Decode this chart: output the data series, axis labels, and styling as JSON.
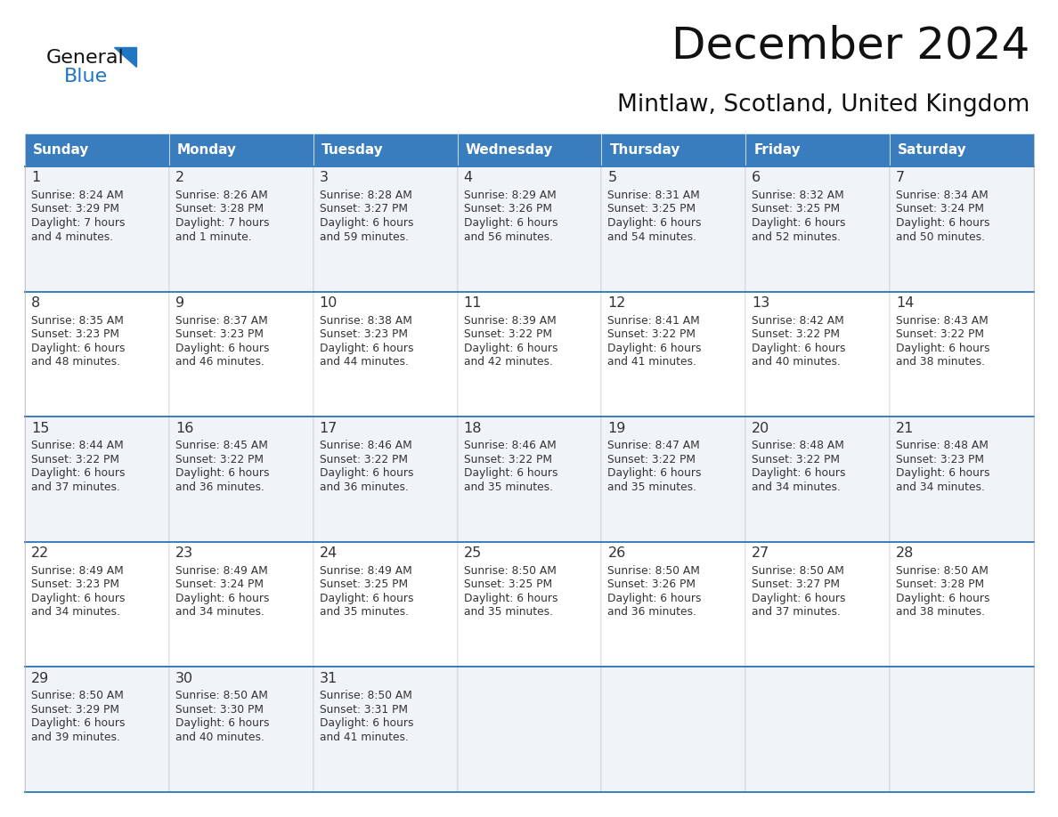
{
  "title": "December 2024",
  "subtitle": "Mintlaw, Scotland, United Kingdom",
  "header_color": "#3a7dbf",
  "header_text_color": "#ffffff",
  "cell_bg_odd": "#f0f4f8",
  "cell_bg_even": "#ffffff",
  "text_color": "#333333",
  "border_color": "#3a7dbf",
  "thin_border": "#aaaaaa",
  "days_of_week": [
    "Sunday",
    "Monday",
    "Tuesday",
    "Wednesday",
    "Thursday",
    "Friday",
    "Saturday"
  ],
  "calendar_data": [
    [
      {
        "day": 1,
        "sunrise": "8:24 AM",
        "sunset": "3:29 PM",
        "daylight": "7 hours",
        "daylight2": "and 4 minutes."
      },
      {
        "day": 2,
        "sunrise": "8:26 AM",
        "sunset": "3:28 PM",
        "daylight": "7 hours",
        "daylight2": "and 1 minute."
      },
      {
        "day": 3,
        "sunrise": "8:28 AM",
        "sunset": "3:27 PM",
        "daylight": "6 hours",
        "daylight2": "and 59 minutes."
      },
      {
        "day": 4,
        "sunrise": "8:29 AM",
        "sunset": "3:26 PM",
        "daylight": "6 hours",
        "daylight2": "and 56 minutes."
      },
      {
        "day": 5,
        "sunrise": "8:31 AM",
        "sunset": "3:25 PM",
        "daylight": "6 hours",
        "daylight2": "and 54 minutes."
      },
      {
        "day": 6,
        "sunrise": "8:32 AM",
        "sunset": "3:25 PM",
        "daylight": "6 hours",
        "daylight2": "and 52 minutes."
      },
      {
        "day": 7,
        "sunrise": "8:34 AM",
        "sunset": "3:24 PM",
        "daylight": "6 hours",
        "daylight2": "and 50 minutes."
      }
    ],
    [
      {
        "day": 8,
        "sunrise": "8:35 AM",
        "sunset": "3:23 PM",
        "daylight": "6 hours",
        "daylight2": "and 48 minutes."
      },
      {
        "day": 9,
        "sunrise": "8:37 AM",
        "sunset": "3:23 PM",
        "daylight": "6 hours",
        "daylight2": "and 46 minutes."
      },
      {
        "day": 10,
        "sunrise": "8:38 AM",
        "sunset": "3:23 PM",
        "daylight": "6 hours",
        "daylight2": "and 44 minutes."
      },
      {
        "day": 11,
        "sunrise": "8:39 AM",
        "sunset": "3:22 PM",
        "daylight": "6 hours",
        "daylight2": "and 42 minutes."
      },
      {
        "day": 12,
        "sunrise": "8:41 AM",
        "sunset": "3:22 PM",
        "daylight": "6 hours",
        "daylight2": "and 41 minutes."
      },
      {
        "day": 13,
        "sunrise": "8:42 AM",
        "sunset": "3:22 PM",
        "daylight": "6 hours",
        "daylight2": "and 40 minutes."
      },
      {
        "day": 14,
        "sunrise": "8:43 AM",
        "sunset": "3:22 PM",
        "daylight": "6 hours",
        "daylight2": "and 38 minutes."
      }
    ],
    [
      {
        "day": 15,
        "sunrise": "8:44 AM",
        "sunset": "3:22 PM",
        "daylight": "6 hours",
        "daylight2": "and 37 minutes."
      },
      {
        "day": 16,
        "sunrise": "8:45 AM",
        "sunset": "3:22 PM",
        "daylight": "6 hours",
        "daylight2": "and 36 minutes."
      },
      {
        "day": 17,
        "sunrise": "8:46 AM",
        "sunset": "3:22 PM",
        "daylight": "6 hours",
        "daylight2": "and 36 minutes."
      },
      {
        "day": 18,
        "sunrise": "8:46 AM",
        "sunset": "3:22 PM",
        "daylight": "6 hours",
        "daylight2": "and 35 minutes."
      },
      {
        "day": 19,
        "sunrise": "8:47 AM",
        "sunset": "3:22 PM",
        "daylight": "6 hours",
        "daylight2": "and 35 minutes."
      },
      {
        "day": 20,
        "sunrise": "8:48 AM",
        "sunset": "3:22 PM",
        "daylight": "6 hours",
        "daylight2": "and 34 minutes."
      },
      {
        "day": 21,
        "sunrise": "8:48 AM",
        "sunset": "3:23 PM",
        "daylight": "6 hours",
        "daylight2": "and 34 minutes."
      }
    ],
    [
      {
        "day": 22,
        "sunrise": "8:49 AM",
        "sunset": "3:23 PM",
        "daylight": "6 hours",
        "daylight2": "and 34 minutes."
      },
      {
        "day": 23,
        "sunrise": "8:49 AM",
        "sunset": "3:24 PM",
        "daylight": "6 hours",
        "daylight2": "and 34 minutes."
      },
      {
        "day": 24,
        "sunrise": "8:49 AM",
        "sunset": "3:25 PM",
        "daylight": "6 hours",
        "daylight2": "and 35 minutes."
      },
      {
        "day": 25,
        "sunrise": "8:50 AM",
        "sunset": "3:25 PM",
        "daylight": "6 hours",
        "daylight2": "and 35 minutes."
      },
      {
        "day": 26,
        "sunrise": "8:50 AM",
        "sunset": "3:26 PM",
        "daylight": "6 hours",
        "daylight2": "and 36 minutes."
      },
      {
        "day": 27,
        "sunrise": "8:50 AM",
        "sunset": "3:27 PM",
        "daylight": "6 hours",
        "daylight2": "and 37 minutes."
      },
      {
        "day": 28,
        "sunrise": "8:50 AM",
        "sunset": "3:28 PM",
        "daylight": "6 hours",
        "daylight2": "and 38 minutes."
      }
    ],
    [
      {
        "day": 29,
        "sunrise": "8:50 AM",
        "sunset": "3:29 PM",
        "daylight": "6 hours",
        "daylight2": "and 39 minutes."
      },
      {
        "day": 30,
        "sunrise": "8:50 AM",
        "sunset": "3:30 PM",
        "daylight": "6 hours",
        "daylight2": "and 40 minutes."
      },
      {
        "day": 31,
        "sunrise": "8:50 AM",
        "sunset": "3:31 PM",
        "daylight": "6 hours",
        "daylight2": "and 41 minutes."
      },
      null,
      null,
      null,
      null
    ]
  ],
  "logo_blue": "#2176c4",
  "logo_black": "#111111",
  "fig_width": 11.88,
  "fig_height": 9.18,
  "dpi": 100
}
